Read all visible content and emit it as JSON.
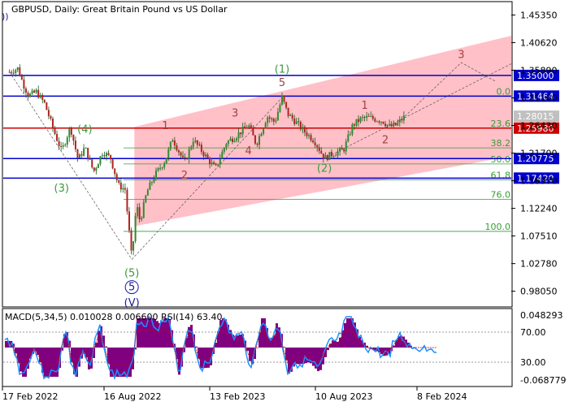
{
  "chart_data": {
    "type": "candlestick",
    "title": "GBPUSD, Daily:  Great Britain Pound vs US Dollar",
    "corner_label": "))",
    "price_axis": {
      "ticks": [
        "1.45350",
        "1.40620",
        "1.35890",
        "1.31160",
        "1.26430",
        "1.21700",
        "1.16970",
        "1.12240",
        "1.07510",
        "1.02780",
        "0.98050"
      ],
      "range": [
        0.955,
        1.475
      ]
    },
    "time_axis": {
      "labels": [
        "17 Feb 2022",
        "16 Aug 2022",
        "13 Feb 2023",
        "10 Aug 2023",
        "8 Feb 2024"
      ]
    },
    "price_path": [
      [
        "2022-02-01",
        1.356
      ],
      [
        "2022-02-17",
        1.362
      ],
      [
        "2022-02-28",
        1.335
      ],
      [
        "2022-03-10",
        1.315
      ],
      [
        "2022-03-25",
        1.322
      ],
      [
        "2022-04-10",
        1.302
      ],
      [
        "2022-04-28",
        1.255
      ],
      [
        "2022-05-13",
        1.22
      ],
      [
        "2022-05-30",
        1.262
      ],
      [
        "2022-06-14",
        1.205
      ],
      [
        "2022-06-27",
        1.227
      ],
      [
        "2022-07-14",
        1.185
      ],
      [
        "2022-08-01",
        1.22
      ],
      [
        "2022-08-16",
        1.208
      ],
      [
        "2022-08-31",
        1.162
      ],
      [
        "2022-09-13",
        1.155
      ],
      [
        "2022-09-26",
        1.035
      ],
      [
        "2022-10-05",
        1.13
      ],
      [
        "2022-10-12",
        1.1
      ],
      [
        "2022-10-25",
        1.15
      ],
      [
        "2022-11-10",
        1.18
      ],
      [
        "2022-11-30",
        1.205
      ],
      [
        "2022-12-14",
        1.242
      ],
      [
        "2023-01-06",
        1.2
      ],
      [
        "2023-01-23",
        1.24
      ],
      [
        "2023-02-13",
        1.215
      ],
      [
        "2023-03-07",
        1.19
      ],
      [
        "2023-03-28",
        1.235
      ],
      [
        "2023-04-14",
        1.245
      ],
      [
        "2023-05-10",
        1.265
      ],
      [
        "2023-05-25",
        1.232
      ],
      [
        "2023-06-15",
        1.28
      ],
      [
        "2023-06-30",
        1.27
      ],
      [
        "2023-07-14",
        1.312
      ],
      [
        "2023-07-25",
        1.284
      ],
      [
        "2023-08-10",
        1.27
      ],
      [
        "2023-08-25",
        1.255
      ],
      [
        "2023-09-15",
        1.238
      ],
      [
        "2023-10-04",
        1.208
      ],
      [
        "2023-10-20",
        1.216
      ],
      [
        "2023-11-10",
        1.222
      ],
      [
        "2023-11-28",
        1.265
      ],
      [
        "2023-12-14",
        1.276
      ],
      [
        "2023-12-28",
        1.278
      ],
      [
        "2024-01-12",
        1.275
      ],
      [
        "2024-01-25",
        1.272
      ],
      [
        "2024-02-08",
        1.262
      ],
      [
        "2024-02-20",
        1.265
      ],
      [
        "2024-03-08",
        1.28
      ]
    ],
    "levels": [
      {
        "value": 1.35,
        "label": "1.35000",
        "color": "#0000cc"
      },
      {
        "value": 1.31464,
        "label": "1.31464",
        "color": "#0000cc"
      },
      {
        "value": 1.2598,
        "label": "1.25980",
        "color": "#cc0000"
      },
      {
        "value": 1.20775,
        "label": "1.20775",
        "color": "#0000cc"
      },
      {
        "value": 1.1742,
        "label": "1.17420",
        "color": "#0000cc"
      }
    ],
    "current_price": {
      "value": 1.28015,
      "label": "1.28015"
    },
    "fibonacci": [
      {
        "label": "0.0",
        "value": 1.3146
      },
      {
        "label": "23.6",
        "value": 1.2598
      },
      {
        "label": "38.2",
        "value": 1.226
      },
      {
        "label": "50.0",
        "value": 1.1985
      },
      {
        "label": "61.8",
        "value": 1.171
      },
      {
        "label": "76.0",
        "value": 1.138
      },
      {
        "label": "100.0",
        "value": 1.083
      }
    ],
    "wave_labels": [
      {
        "text": "(1)",
        "date": "2023-07-14",
        "price": 1.355,
        "color": "#3a9a3a",
        "style": "plain"
      },
      {
        "text": "(2)",
        "date": "2023-10-04",
        "price": 1.185,
        "color": "#3a9a3a",
        "style": "plain"
      },
      {
        "text": "(3)",
        "date": "2022-05-13",
        "price": 1.151,
        "color": "#3a9a3a",
        "style": "plain"
      },
      {
        "text": "(4)",
        "date": "2022-06-27",
        "price": 1.252,
        "color": "#3a9a3a",
        "style": "plain"
      },
      {
        "text": "(5)",
        "date": "2022-09-26",
        "price": 1.006,
        "color": "#3a9a3a",
        "style": "plain"
      },
      {
        "text": "5",
        "date": "2022-09-26",
        "price": 0.982,
        "color": "#1a1a9a",
        "style": "circle"
      },
      {
        "text": "(V)",
        "date": "2022-09-26",
        "price": 0.955,
        "color": "#1a1a9a",
        "style": "plain"
      },
      {
        "text": "1",
        "date": "2022-11-30",
        "price": 1.258,
        "color": "#a04040",
        "style": "plain"
      },
      {
        "text": "2",
        "date": "2023-01-06",
        "price": 1.173,
        "color": "#a04040",
        "style": "plain"
      },
      {
        "text": "3",
        "date": "2023-04-14",
        "price": 1.28,
        "color": "#a04040",
        "style": "plain"
      },
      {
        "text": "4",
        "date": "2023-05-10",
        "price": 1.215,
        "color": "#a04040",
        "style": "plain"
      },
      {
        "text": "5",
        "date": "2023-07-14",
        "price": 1.332,
        "color": "#a04040",
        "style": "plain"
      },
      {
        "text": "1",
        "date": "2023-12-21",
        "price": 1.293,
        "color": "#a04040",
        "style": "plain"
      },
      {
        "text": "2",
        "date": "2024-01-30",
        "price": 1.234,
        "color": "#a04040",
        "style": "plain"
      },
      {
        "text": "3",
        "date": "2024-06-25",
        "price": 1.38,
        "color": "#a04040",
        "style": "plain"
      }
    ],
    "channel": {
      "upper": [
        [
          "2022-10-01",
          1.262
        ],
        [
          "2024-09-30",
          1.418
        ]
      ],
      "lower": [
        [
          "2022-10-01",
          1.092
        ],
        [
          "2024-09-30",
          1.212
        ]
      ]
    }
  },
  "indicator": {
    "label": "MACD(5,34,5) 0.010028 0.006600 RSI(14) 63.40",
    "ticks": {
      "top": "0.048293",
      "upper": "70.00",
      "lower": "30.00",
      "bottom": "-0.068779"
    },
    "histogram_color": "#800080",
    "rsi_color": "#1e90ff",
    "signal_color": "#cc0000"
  }
}
